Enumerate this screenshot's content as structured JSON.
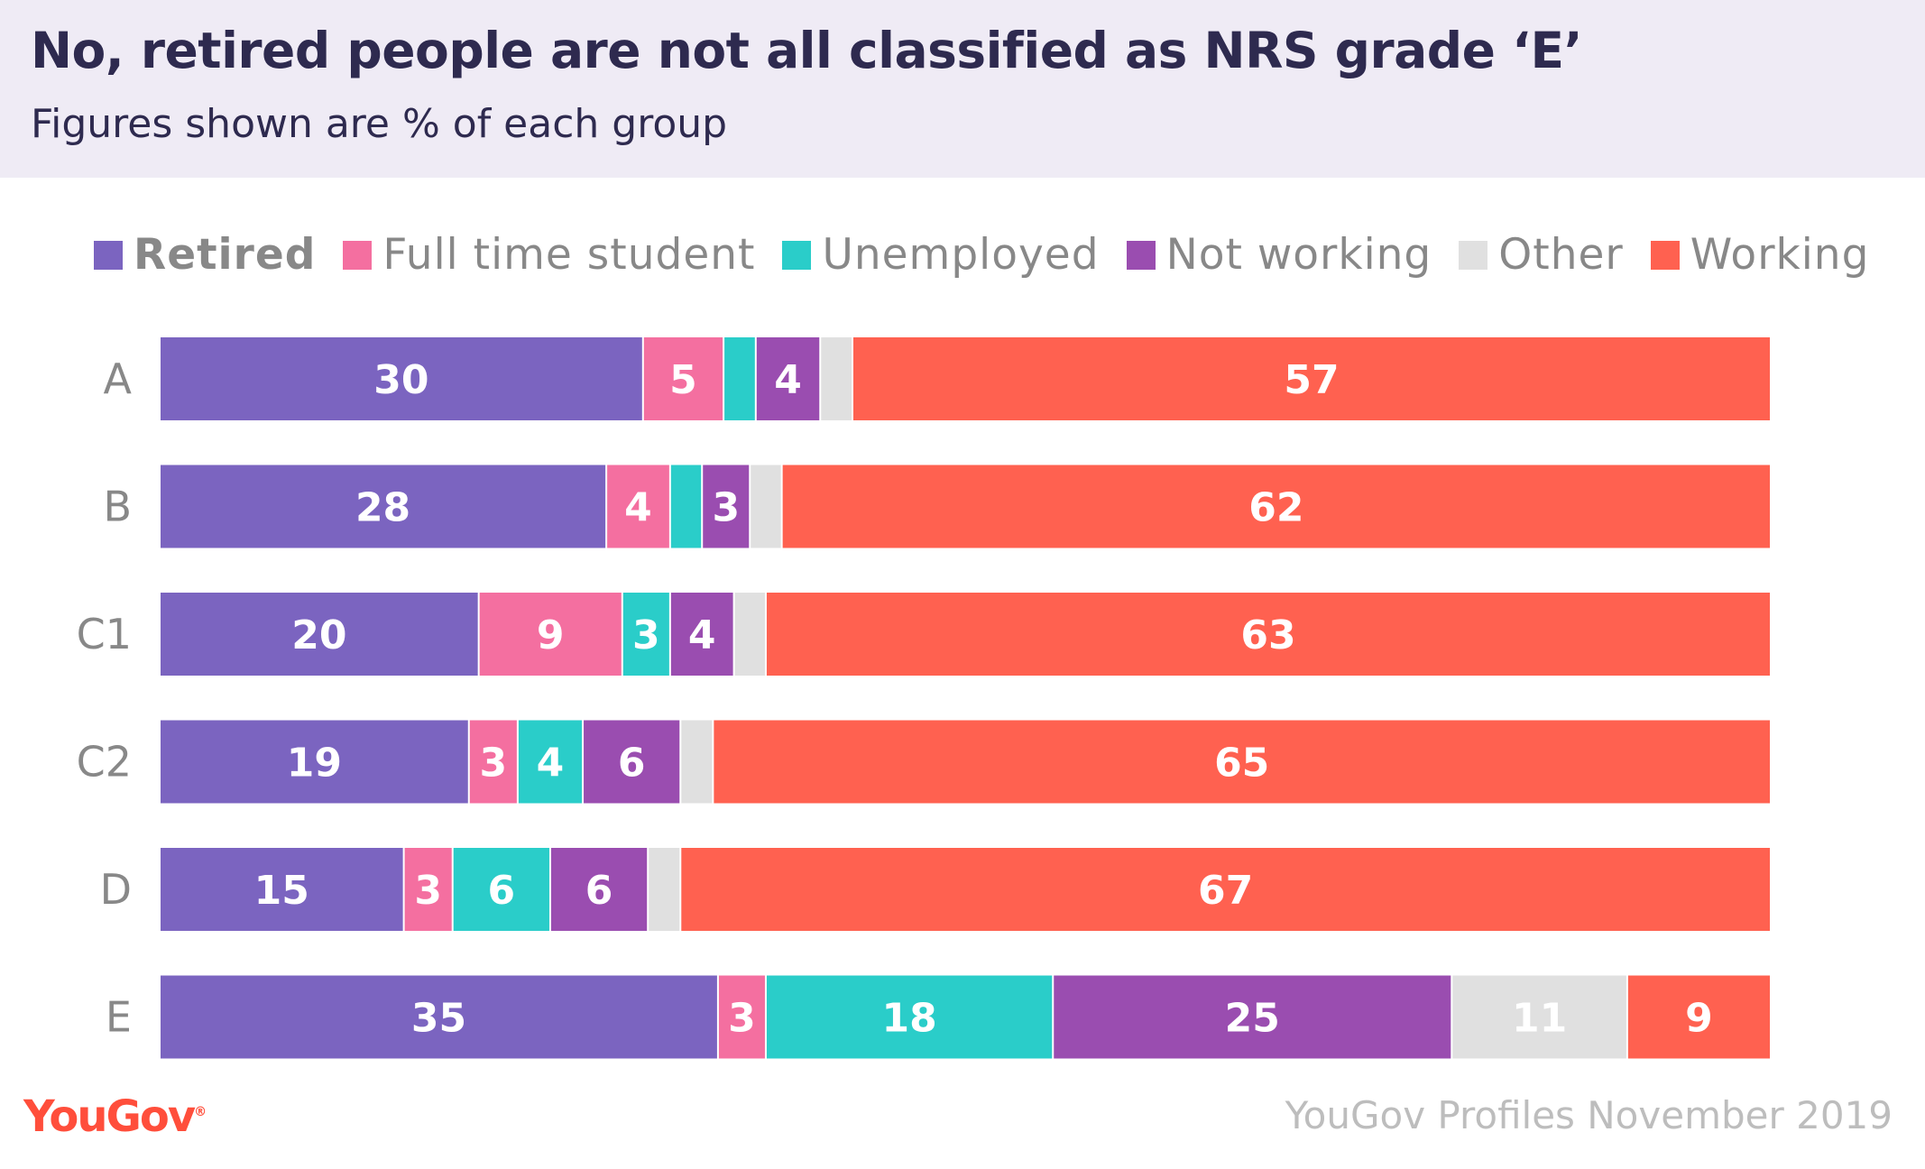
{
  "header": {
    "title": "No, retired people are not all classified as NRS grade ‘E’",
    "subtitle": "Figures shown are % of each group"
  },
  "chart_data": {
    "type": "bar",
    "orientation": "horizontal",
    "stacked": true,
    "categories": [
      "A",
      "B",
      "C1",
      "C2",
      "D",
      "E"
    ],
    "series": [
      {
        "name": "Retired",
        "color": "#7B64C0",
        "values": [
          30,
          28,
          20,
          19,
          15,
          35
        ]
      },
      {
        "name": "Full time student",
        "color": "#F46FA0",
        "values": [
          5,
          4,
          9,
          3,
          3,
          3
        ]
      },
      {
        "name": "Unemployed",
        "color": "#2ACDC9",
        "values": [
          2,
          2,
          3,
          4,
          6,
          18
        ]
      },
      {
        "name": "Not working",
        "color": "#9A4DB0",
        "values": [
          4,
          3,
          4,
          6,
          6,
          25
        ]
      },
      {
        "name": "Other",
        "color": "#E0E0E0",
        "values": [
          2,
          2,
          2,
          2,
          2,
          11
        ]
      },
      {
        "name": "Working",
        "color": "#FF6150",
        "values": [
          57,
          62,
          63,
          65,
          67,
          9
        ]
      }
    ],
    "legend_position": "top",
    "grid": false,
    "units": "%"
  },
  "footer": {
    "logo": "YouGov",
    "source": "YouGov Profiles November 2019"
  }
}
